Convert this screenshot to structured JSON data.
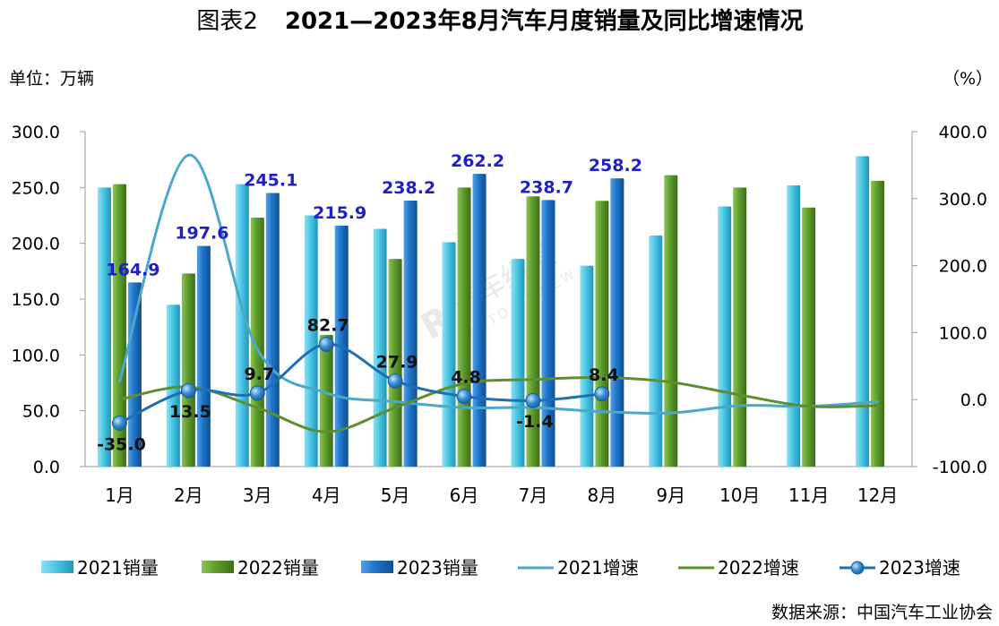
{
  "chart_data": {
    "type": "bar",
    "title_prefix": "图表2",
    "title": "2021—2023年8月汽车月度销量及同比增速情况",
    "y_left_label": "单位：万辆",
    "y_right_label": "（%）",
    "source": "数据来源：中国汽车工业协会",
    "categories": [
      "1月",
      "2月",
      "3月",
      "4月",
      "5月",
      "6月",
      "7月",
      "8月",
      "9月",
      "10月",
      "11月",
      "12月"
    ],
    "y_left": {
      "min": 0,
      "max": 300,
      "step": 50
    },
    "y_right": {
      "min": -100,
      "max": 400,
      "step": 100
    },
    "y_left_ticks": [
      "0.0",
      "50.0",
      "100.0",
      "150.0",
      "200.0",
      "250.0",
      "300.0"
    ],
    "y_right_ticks": [
      "-100.0",
      "0.0",
      "100.0",
      "200.0",
      "300.0",
      "400.0"
    ],
    "bar_series": [
      {
        "name": "2021销量",
        "color": "#4bc6e3",
        "values": [
          250,
          145,
          253,
          225,
          213,
          201,
          186,
          180,
          207,
          233,
          252,
          278
        ]
      },
      {
        "name": "2022销量",
        "color": "#5e9c2c",
        "values": [
          253,
          173,
          223,
          118,
          186,
          250,
          242,
          238,
          261,
          250,
          232,
          256
        ]
      },
      {
        "name": "2023销量",
        "color": "#1f74c8",
        "values": [
          164.9,
          197.6,
          245.1,
          215.9,
          238.2,
          262.2,
          238.7,
          258.2,
          null,
          null,
          null,
          null
        ],
        "labels": [
          "164.9",
          "197.6",
          "245.1",
          "215.9",
          "238.2",
          "262.2",
          "238.7",
          "258.2",
          "",
          "",
          "",
          ""
        ]
      }
    ],
    "line_series": [
      {
        "name": "2021增速",
        "color": "#4aa9c8",
        "values": [
          27,
          365,
          75,
          10,
          -3,
          -12,
          -12,
          -18,
          -20,
          -9,
          -10,
          -3
        ]
      },
      {
        "name": "2022增速",
        "color": "#5e8f2e",
        "values": [
          0,
          19,
          -12,
          -48,
          -12,
          24,
          30,
          33,
          26,
          7,
          -10,
          -9
        ]
      },
      {
        "name": "2023增速",
        "color": "#1e6fb3",
        "values": [
          -35.0,
          13.5,
          9.7,
          82.7,
          27.9,
          4.8,
          -1.4,
          8.4,
          null,
          null,
          null,
          null
        ],
        "labels": [
          "-35.0",
          "13.5",
          "9.7",
          "82.7",
          "27.9",
          "4.8",
          "-1.4",
          "8.4",
          "",
          "",
          "",
          ""
        ]
      }
    ],
    "legend": [
      "2021销量",
      "2022销量",
      "2023销量",
      "2021增速",
      "2022增速",
      "2023增速"
    ],
    "legend_placement": "bottom",
    "watermark": "汽车纵横 AUTO REVIEW"
  }
}
